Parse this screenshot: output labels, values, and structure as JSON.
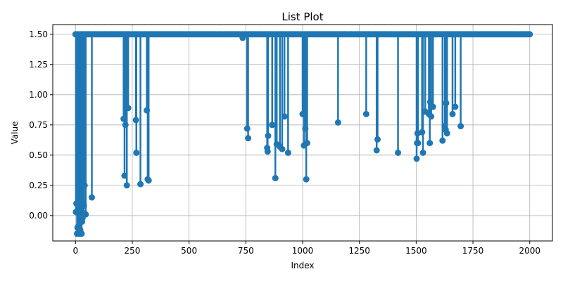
{
  "chart_data": {
    "type": "line",
    "title": "List Plot",
    "xlabel": "Index",
    "ylabel": "Value",
    "xlim": [
      -100,
      2100
    ],
    "ylim": [
      -0.21,
      1.58
    ],
    "xticks": [
      0,
      250,
      500,
      750,
      1000,
      1250,
      1500,
      1750,
      2000
    ],
    "xtick_labels": [
      "0",
      "250",
      "500",
      "750",
      "1000",
      "1250",
      "1500",
      "1750",
      "2000"
    ],
    "yticks": [
      0.0,
      0.25,
      0.5,
      0.75,
      1.0,
      1.25,
      1.5
    ],
    "ytick_labels": [
      "0.00",
      "0.25",
      "0.50",
      "0.75",
      "1.00",
      "1.25",
      "1.50"
    ],
    "grid": true,
    "baseline": 1.5,
    "x_range": [
      0,
      2000
    ],
    "color": "#1f77b4",
    "dips": [
      {
        "x": 2,
        "y": 0.03
      },
      {
        "x": 4,
        "y": 0.1
      },
      {
        "x": 7,
        "y": -0.15
      },
      {
        "x": 9,
        "y": -0.1
      },
      {
        "x": 11,
        "y": 0.02
      },
      {
        "x": 13,
        "y": 0.05
      },
      {
        "x": 15,
        "y": -0.08
      },
      {
        "x": 17,
        "y": -0.15
      },
      {
        "x": 19,
        "y": 0.08
      },
      {
        "x": 21,
        "y": -0.12
      },
      {
        "x": 23,
        "y": 0.0
      },
      {
        "x": 25,
        "y": 0.72
      },
      {
        "x": 27,
        "y": -0.15
      },
      {
        "x": 29,
        "y": -0.05
      },
      {
        "x": 31,
        "y": -0.02
      },
      {
        "x": 33,
        "y": 0.1
      },
      {
        "x": 35,
        "y": 0.02
      },
      {
        "x": 37,
        "y": 0.08
      },
      {
        "x": 40,
        "y": 0.25
      },
      {
        "x": 45,
        "y": 0.01
      },
      {
        "x": 72,
        "y": 0.15
      },
      {
        "x": 212,
        "y": 0.8
      },
      {
        "x": 216,
        "y": 0.33
      },
      {
        "x": 220,
        "y": 0.75
      },
      {
        "x": 226,
        "y": 0.25
      },
      {
        "x": 232,
        "y": 0.89
      },
      {
        "x": 266,
        "y": 0.79
      },
      {
        "x": 268,
        "y": 0.52
      },
      {
        "x": 286,
        "y": 0.26
      },
      {
        "x": 314,
        "y": 0.87
      },
      {
        "x": 318,
        "y": 0.3
      },
      {
        "x": 322,
        "y": 0.29
      },
      {
        "x": 736,
        "y": 1.47
      },
      {
        "x": 756,
        "y": 0.72
      },
      {
        "x": 760,
        "y": 0.64
      },
      {
        "x": 844,
        "y": 0.56
      },
      {
        "x": 846,
        "y": 0.53
      },
      {
        "x": 848,
        "y": 0.66
      },
      {
        "x": 866,
        "y": 0.75
      },
      {
        "x": 880,
        "y": 0.31
      },
      {
        "x": 886,
        "y": 0.59
      },
      {
        "x": 900,
        "y": 0.57
      },
      {
        "x": 910,
        "y": 0.55
      },
      {
        "x": 920,
        "y": 0.82
      },
      {
        "x": 936,
        "y": 0.52
      },
      {
        "x": 1000,
        "y": 0.84
      },
      {
        "x": 1006,
        "y": 0.58
      },
      {
        "x": 1012,
        "y": 0.72
      },
      {
        "x": 1016,
        "y": 0.3
      },
      {
        "x": 1020,
        "y": 0.6
      },
      {
        "x": 1156,
        "y": 0.77
      },
      {
        "x": 1280,
        "y": 0.84
      },
      {
        "x": 1326,
        "y": 0.54
      },
      {
        "x": 1330,
        "y": 0.63
      },
      {
        "x": 1420,
        "y": 0.52
      },
      {
        "x": 1502,
        "y": 0.47
      },
      {
        "x": 1504,
        "y": 0.6
      },
      {
        "x": 1506,
        "y": 0.68
      },
      {
        "x": 1508,
        "y": 0.6
      },
      {
        "x": 1526,
        "y": 0.69
      },
      {
        "x": 1530,
        "y": 0.52
      },
      {
        "x": 1540,
        "y": 0.86
      },
      {
        "x": 1556,
        "y": 0.84
      },
      {
        "x": 1560,
        "y": 0.6
      },
      {
        "x": 1562,
        "y": 0.94
      },
      {
        "x": 1566,
        "y": 0.82
      },
      {
        "x": 1574,
        "y": 0.9
      },
      {
        "x": 1616,
        "y": 0.62
      },
      {
        "x": 1626,
        "y": 0.74
      },
      {
        "x": 1630,
        "y": 0.71
      },
      {
        "x": 1632,
        "y": 0.93
      },
      {
        "x": 1636,
        "y": 0.68
      },
      {
        "x": 1660,
        "y": 0.84
      },
      {
        "x": 1672,
        "y": 0.9
      },
      {
        "x": 1696,
        "y": 0.74
      }
    ]
  }
}
